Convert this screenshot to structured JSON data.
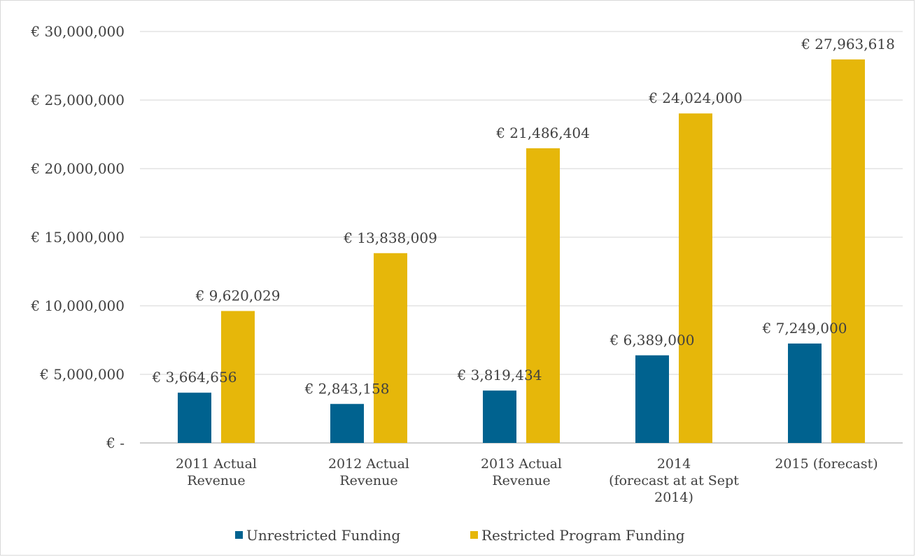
{
  "chart_data": {
    "type": "bar",
    "title": "",
    "xlabel": "",
    "ylabel": "",
    "ylim": [
      0,
      30000000
    ],
    "y_ticks": [
      0,
      5000000,
      10000000,
      15000000,
      20000000,
      25000000,
      30000000
    ],
    "y_tick_labels": [
      "€ -",
      "€ 5,000,000",
      "€ 10,000,000",
      "€ 15,000,000",
      "€ 20,000,000",
      "€ 25,000,000",
      "€ 30,000,000"
    ],
    "grid": true,
    "legend_position": "bottom",
    "categories": [
      [
        "2011 Actual",
        "Revenue"
      ],
      [
        "2012 Actual",
        "Revenue"
      ],
      [
        "2013 Actual",
        "Revenue"
      ],
      [
        "2014",
        "(forecast at at Sept",
        "2014)"
      ],
      [
        "2015 (forecast)"
      ]
    ],
    "series": [
      {
        "name": "Unrestricted Funding",
        "color": "#00628f",
        "values": [
          3664656,
          2843158,
          3819434,
          6389000,
          7249000
        ],
        "labels": [
          "€ 3,664,656",
          "€ 2,843,158",
          "€ 3,819,434",
          "€ 6,389,000",
          "€ 7,249,000"
        ]
      },
      {
        "name": "Restricted Program Funding",
        "color": "#e6b70a",
        "values": [
          9620029,
          13838009,
          21486404,
          24024000,
          27963618
        ],
        "labels": [
          "€ 9,620,029",
          "€ 13,838,009",
          "€ 21,486,404",
          "€ 24,024,000",
          "€ 27,963,618"
        ]
      }
    ]
  }
}
